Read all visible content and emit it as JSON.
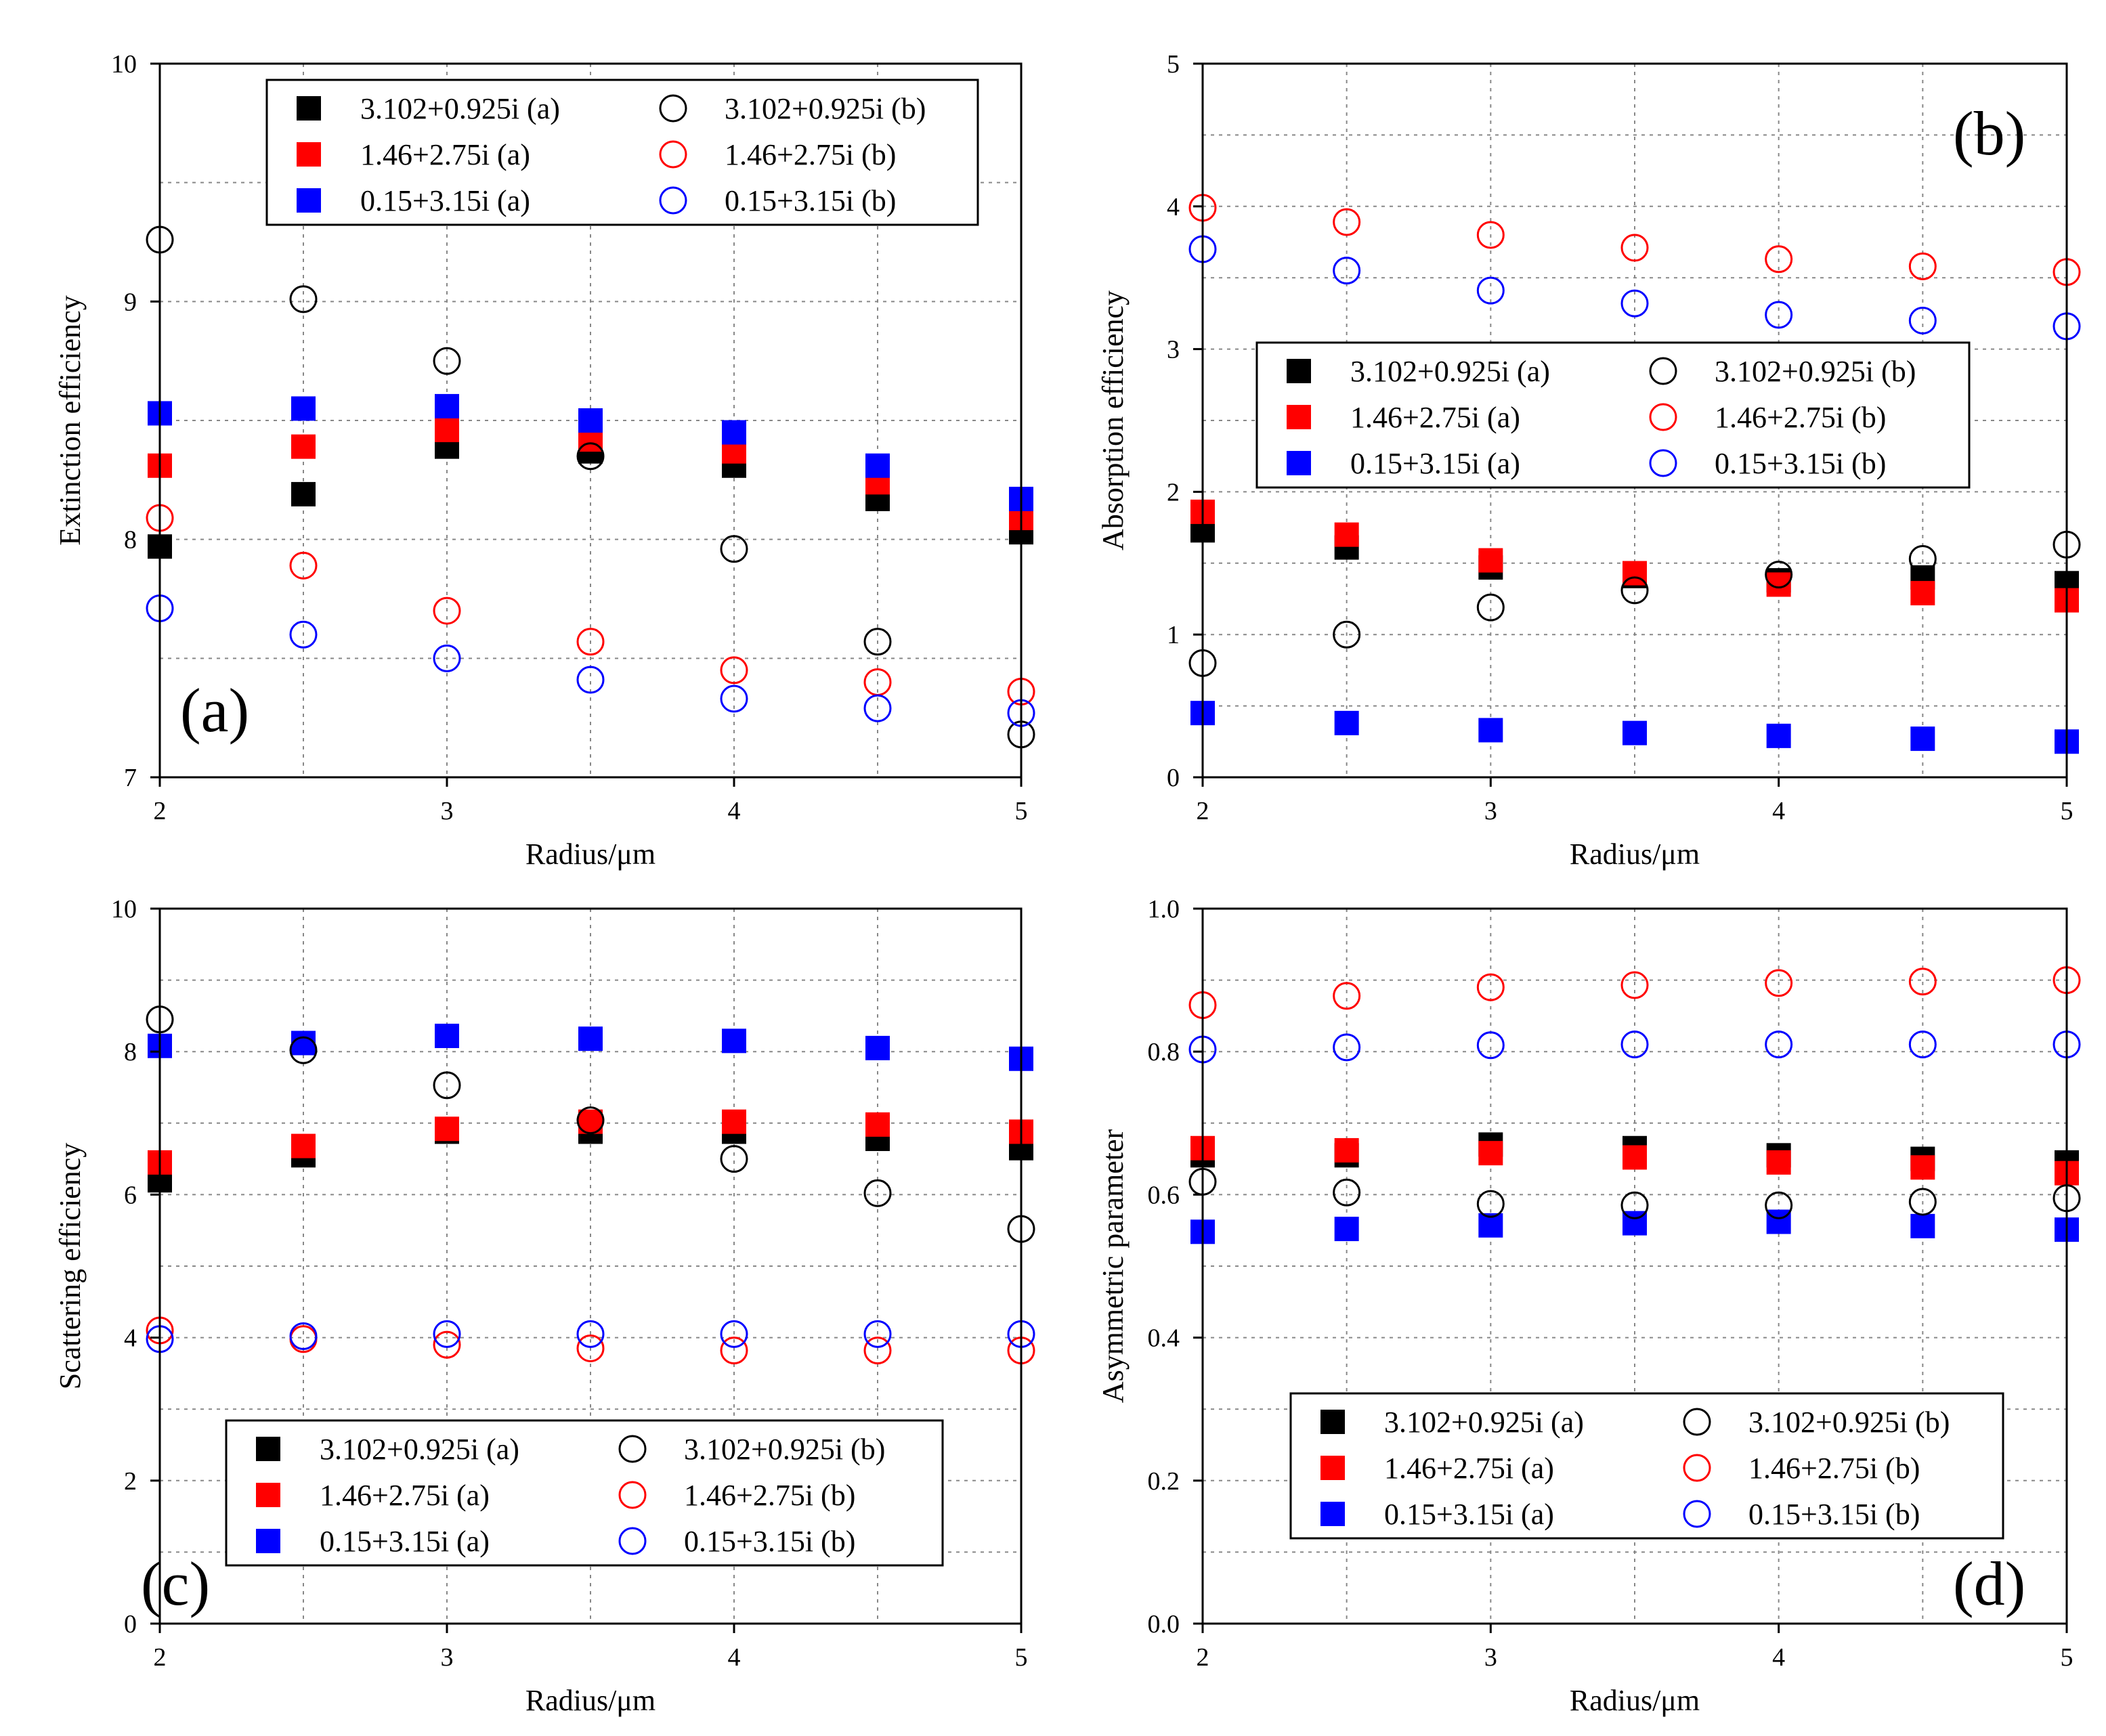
{
  "chart_data": [
    {
      "type": "scatter",
      "panel_label": "(a)",
      "xlabel": "Radius/μm",
      "ylabel": "Extinction efficiency",
      "xlim": [
        2,
        5
      ],
      "ylim": [
        7,
        10
      ],
      "xticks": [
        2,
        3,
        4,
        5
      ],
      "yticks": [
        7,
        8,
        9,
        10
      ],
      "grid": true,
      "legend_position": "top-center",
      "x": [
        2,
        2.5,
        3,
        3.5,
        4,
        4.5,
        5
      ],
      "series": [
        {
          "name": "3.102+0.925i (a)",
          "color": "#000000",
          "marker": "filled-square",
          "values": [
            7.97,
            8.19,
            8.39,
            8.37,
            8.31,
            8.17,
            8.03
          ]
        },
        {
          "name": "1.46+2.75i (a)",
          "color": "#ff0000",
          "marker": "filled-square",
          "values": [
            8.31,
            8.39,
            8.46,
            8.42,
            8.37,
            8.24,
            8.09
          ]
        },
        {
          "name": "0.15+3.15i (a)",
          "color": "#0000ff",
          "marker": "filled-square",
          "values": [
            8.53,
            8.55,
            8.56,
            8.5,
            8.45,
            8.31,
            8.17
          ]
        },
        {
          "name": "3.102+0.925i (b)",
          "color": "#000000",
          "marker": "open-circle",
          "values": [
            9.26,
            9.01,
            8.75,
            8.35,
            7.96,
            7.57,
            7.18
          ]
        },
        {
          "name": "1.46+2.75i (b)",
          "color": "#ff0000",
          "marker": "open-circle",
          "values": [
            8.09,
            7.89,
            7.7,
            7.57,
            7.45,
            7.4,
            7.36
          ]
        },
        {
          "name": "0.15+3.15i (b)",
          "color": "#0000ff",
          "marker": "open-circle",
          "values": [
            7.71,
            7.6,
            7.5,
            7.41,
            7.33,
            7.29,
            7.27
          ]
        }
      ]
    },
    {
      "type": "scatter",
      "panel_label": "(b)",
      "xlabel": "Radius/μm",
      "ylabel": "Absorption efficiency",
      "xlim": [
        2,
        5
      ],
      "ylim": [
        0,
        5
      ],
      "xticks": [
        2,
        3,
        4,
        5
      ],
      "yticks": [
        0,
        1,
        2,
        3,
        4,
        5
      ],
      "grid": true,
      "legend_position": "center-right",
      "x": [
        2,
        2.5,
        3,
        3.5,
        4,
        4.5,
        5
      ],
      "series": [
        {
          "name": "3.102+0.925i (a)",
          "color": "#000000",
          "marker": "filled-square",
          "values": [
            1.73,
            1.61,
            1.47,
            1.41,
            1.38,
            1.4,
            1.36
          ]
        },
        {
          "name": "1.46+2.75i (a)",
          "color": "#ff0000",
          "marker": "filled-square",
          "values": [
            1.86,
            1.7,
            1.52,
            1.43,
            1.35,
            1.29,
            1.24
          ]
        },
        {
          "name": "0.15+3.15i (a)",
          "color": "#0000ff",
          "marker": "filled-square",
          "values": [
            0.45,
            0.38,
            0.33,
            0.31,
            0.29,
            0.27,
            0.25
          ]
        },
        {
          "name": "3.102+0.925i (b)",
          "color": "#000000",
          "marker": "open-circle",
          "values": [
            0.8,
            1.0,
            1.19,
            1.31,
            1.42,
            1.53,
            1.63
          ]
        },
        {
          "name": "1.46+2.75i (b)",
          "color": "#ff0000",
          "marker": "open-circle",
          "values": [
            3.99,
            3.89,
            3.8,
            3.71,
            3.63,
            3.58,
            3.54
          ]
        },
        {
          "name": "0.15+3.15i (b)",
          "color": "#0000ff",
          "marker": "open-circle",
          "values": [
            3.7,
            3.55,
            3.41,
            3.32,
            3.24,
            3.2,
            3.16
          ]
        }
      ]
    },
    {
      "type": "scatter",
      "panel_label": "(c)",
      "xlabel": "Radius/μm",
      "ylabel": "Scattering efficiency",
      "xlim": [
        2,
        5
      ],
      "ylim": [
        0,
        10
      ],
      "xticks": [
        2,
        3,
        4,
        5
      ],
      "yticks": [
        0,
        2,
        4,
        6,
        8,
        10
      ],
      "grid": true,
      "legend_position": "bottom-center",
      "x": [
        2,
        2.5,
        3,
        3.5,
        4,
        4.5,
        5
      ],
      "series": [
        {
          "name": "3.102+0.925i (a)",
          "color": "#000000",
          "marker": "filled-square",
          "values": [
            6.2,
            6.55,
            6.88,
            6.88,
            6.88,
            6.78,
            6.65
          ]
        },
        {
          "name": "1.46+2.75i (a)",
          "color": "#ff0000",
          "marker": "filled-square",
          "values": [
            6.45,
            6.68,
            6.92,
            7.02,
            7.02,
            6.98,
            6.88
          ]
        },
        {
          "name": "0.15+3.15i (a)",
          "color": "#0000ff",
          "marker": "filled-square",
          "values": [
            8.08,
            8.12,
            8.22,
            8.18,
            8.15,
            8.05,
            7.9
          ]
        },
        {
          "name": "3.102+0.925i (b)",
          "color": "#000000",
          "marker": "open-circle",
          "values": [
            8.45,
            8.02,
            7.53,
            7.04,
            6.5,
            6.02,
            5.52
          ]
        },
        {
          "name": "1.46+2.75i (b)",
          "color": "#ff0000",
          "marker": "open-circle",
          "values": [
            4.1,
            3.98,
            3.9,
            3.85,
            3.82,
            3.82,
            3.82
          ]
        },
        {
          "name": "0.15+3.15i (b)",
          "color": "#0000ff",
          "marker": "open-circle",
          "values": [
            3.98,
            4.02,
            4.05,
            4.05,
            4.05,
            4.05,
            4.05
          ]
        }
      ]
    },
    {
      "type": "scatter",
      "panel_label": "(d)",
      "xlabel": "Radius/μm",
      "ylabel": "Asymmetric parameter",
      "xlim": [
        2,
        5
      ],
      "ylim": [
        0,
        1.0
      ],
      "xticks": [
        2,
        3,
        4,
        5
      ],
      "yticks": [
        0.0,
        0.2,
        0.4,
        0.6,
        0.8,
        1.0
      ],
      "ytick_labels": [
        "0.0",
        "0.2",
        "0.4",
        "0.6",
        "0.8",
        "1.0"
      ],
      "grid": true,
      "legend_position": "bottom-center",
      "x": [
        2,
        2.5,
        3,
        3.5,
        4,
        4.5,
        5
      ],
      "series": [
        {
          "name": "3.102+0.925i (a)",
          "color": "#000000",
          "marker": "filled-square",
          "values": [
            0.655,
            0.655,
            0.67,
            0.665,
            0.655,
            0.65,
            0.645
          ]
        },
        {
          "name": "1.46+2.75i (a)",
          "color": "#ff0000",
          "marker": "filled-square",
          "values": [
            0.665,
            0.662,
            0.658,
            0.652,
            0.645,
            0.638,
            0.63
          ]
        },
        {
          "name": "0.15+3.15i (a)",
          "color": "#0000ff",
          "marker": "filled-square",
          "values": [
            0.548,
            0.552,
            0.557,
            0.56,
            0.562,
            0.556,
            0.551
          ]
        },
        {
          "name": "3.102+0.925i (b)",
          "color": "#000000",
          "marker": "open-circle",
          "values": [
            0.618,
            0.603,
            0.587,
            0.585,
            0.585,
            0.59,
            0.595
          ]
        },
        {
          "name": "1.46+2.75i (b)",
          "color": "#ff0000",
          "marker": "open-circle",
          "values": [
            0.865,
            0.878,
            0.89,
            0.893,
            0.896,
            0.898,
            0.9
          ]
        },
        {
          "name": "0.15+3.15i (b)",
          "color": "#0000ff",
          "marker": "open-circle",
          "values": [
            0.803,
            0.806,
            0.809,
            0.81,
            0.81,
            0.81,
            0.81
          ]
        }
      ]
    }
  ]
}
